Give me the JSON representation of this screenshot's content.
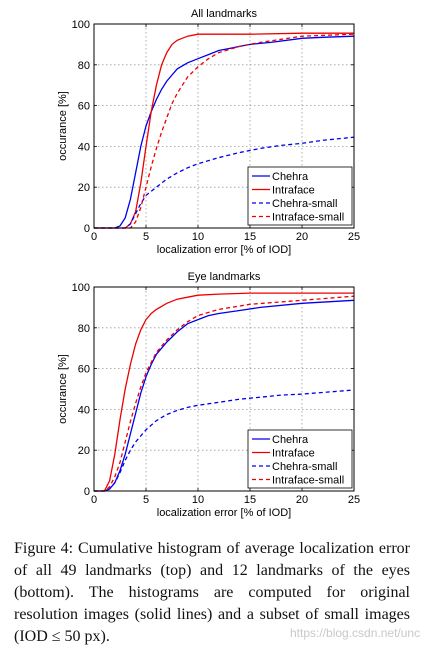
{
  "chart_data": [
    {
      "type": "line",
      "title": "All landmarks",
      "xlabel": "localization error [% of IOD]",
      "ylabel": "occurance [%]",
      "xlim": [
        0,
        25
      ],
      "ylim": [
        0,
        100
      ],
      "xticks": [
        "0",
        "5",
        "10",
        "15",
        "20",
        "25"
      ],
      "yticks": [
        "0",
        "20",
        "40",
        "60",
        "80",
        "100"
      ],
      "grid": true,
      "legend_position": "bottom-right",
      "series": [
        {
          "name": "Chehra",
          "color": "#0000ee",
          "dash": "solid",
          "x": [
            0,
            2,
            2.5,
            3,
            3.5,
            4,
            4.5,
            5,
            5.5,
            6,
            6.5,
            7,
            7.5,
            8,
            9,
            10,
            11,
            12,
            13,
            14,
            15,
            17,
            20,
            22,
            25
          ],
          "y": [
            0,
            0,
            1,
            5,
            14,
            27,
            40,
            50,
            57,
            63,
            68,
            72,
            75,
            78,
            81,
            83,
            85,
            87,
            88,
            89,
            90,
            91,
            93,
            93.5,
            94
          ]
        },
        {
          "name": "Intraface",
          "color": "#ee0000",
          "dash": "solid",
          "x": [
            0,
            3,
            3.5,
            4,
            4.5,
            5,
            5.5,
            6,
            6.5,
            7,
            7.5,
            8,
            9,
            10,
            12,
            15,
            20,
            25
          ],
          "y": [
            0,
            0,
            2,
            8,
            22,
            40,
            57,
            70,
            80,
            86,
            90,
            92,
            94,
            95,
            95,
            95,
            95.5,
            95.5
          ]
        },
        {
          "name": "Chehra-small",
          "color": "#0000ee",
          "dash": "dashed",
          "x": [
            0,
            3,
            3.5,
            4,
            4.5,
            5,
            6,
            7,
            8,
            9,
            10,
            12,
            14,
            16,
            18,
            20,
            22,
            25
          ],
          "y": [
            0,
            0,
            2,
            7,
            12,
            16,
            20,
            24,
            27,
            29.5,
            31.5,
            34.5,
            37,
            39,
            40.5,
            41.5,
            43,
            44.5
          ]
        },
        {
          "name": "Intraface-small",
          "color": "#ee0000",
          "dash": "dashed",
          "x": [
            0,
            3.5,
            4,
            4.5,
            5,
            5.5,
            6,
            6.5,
            7,
            7.5,
            8,
            8.5,
            9,
            10,
            11,
            12,
            14,
            16,
            18,
            20,
            25
          ],
          "y": [
            0,
            0,
            3,
            10,
            20,
            30,
            39,
            47,
            54,
            61,
            66,
            70,
            74,
            79,
            83,
            86,
            89,
            91,
            92.5,
            94,
            95
          ]
        }
      ]
    },
    {
      "type": "line",
      "title": "Eye landmarks",
      "xlabel": "localization error [% of IOD]",
      "ylabel": "occurance [%]",
      "xlim": [
        0,
        25
      ],
      "ylim": [
        0,
        100
      ],
      "xticks": [
        "0",
        "5",
        "10",
        "15",
        "20",
        "25"
      ],
      "yticks": [
        "0",
        "20",
        "40",
        "60",
        "80",
        "100"
      ],
      "grid": true,
      "legend_position": "bottom-right",
      "series": [
        {
          "name": "Chehra",
          "color": "#0000ee",
          "dash": "solid",
          "x": [
            0,
            1,
            1.5,
            2,
            2.5,
            3,
            3.5,
            4,
            4.5,
            5,
            5.5,
            6,
            6.5,
            7,
            8,
            9,
            10,
            11,
            12,
            14,
            16,
            20,
            25
          ],
          "y": [
            0,
            0,
            1,
            4,
            10,
            18,
            28,
            38,
            48,
            56,
            62,
            67,
            70,
            73,
            78,
            82,
            84,
            86,
            87,
            88.5,
            90,
            92,
            93.5
          ]
        },
        {
          "name": "Intraface",
          "color": "#ee0000",
          "dash": "solid",
          "x": [
            0,
            1,
            1.5,
            2,
            2.5,
            3,
            3.5,
            4,
            4.5,
            5,
            5.5,
            6,
            7,
            8,
            9,
            10,
            12,
            15,
            20,
            25
          ],
          "y": [
            0,
            0,
            5,
            18,
            35,
            50,
            62,
            72,
            79,
            84,
            87,
            89,
            92,
            94,
            95,
            96,
            96.5,
            97,
            97,
            97
          ]
        },
        {
          "name": "Chehra-small",
          "color": "#0000ee",
          "dash": "dashed",
          "x": [
            0,
            1,
            1.5,
            2,
            2.5,
            3,
            3.5,
            4,
            5,
            6,
            7,
            8,
            9,
            10,
            12,
            14,
            16,
            18,
            20,
            25
          ],
          "y": [
            0,
            0,
            1,
            4,
            9,
            15,
            20,
            24,
            30,
            34.5,
            37.5,
            39.5,
            41,
            42,
            43.5,
            45,
            46,
            47,
            47.5,
            49.5
          ]
        },
        {
          "name": "Intraface-small",
          "color": "#ee0000",
          "dash": "dashed",
          "x": [
            0,
            1,
            1.5,
            2,
            2.5,
            3,
            3.5,
            4,
            4.5,
            5,
            5.5,
            6,
            7,
            8,
            9,
            10,
            12,
            15,
            20,
            25
          ],
          "y": [
            0,
            0,
            2,
            7,
            14,
            24,
            34,
            43,
            51,
            58,
            63,
            68,
            74,
            79,
            83,
            86,
            89,
            91.5,
            93.5,
            95.5
          ]
        }
      ]
    }
  ],
  "caption": "Figure 4: Cumulative histogram of average localization error of all 49 landmarks (top) and 12 landmarks of the eyes (bottom). The histograms are computed for original resolution images (solid lines) and a subset of small images (IOD ≤ 50 px).",
  "watermark": "https://blog.csdn.net/uncle_ll"
}
